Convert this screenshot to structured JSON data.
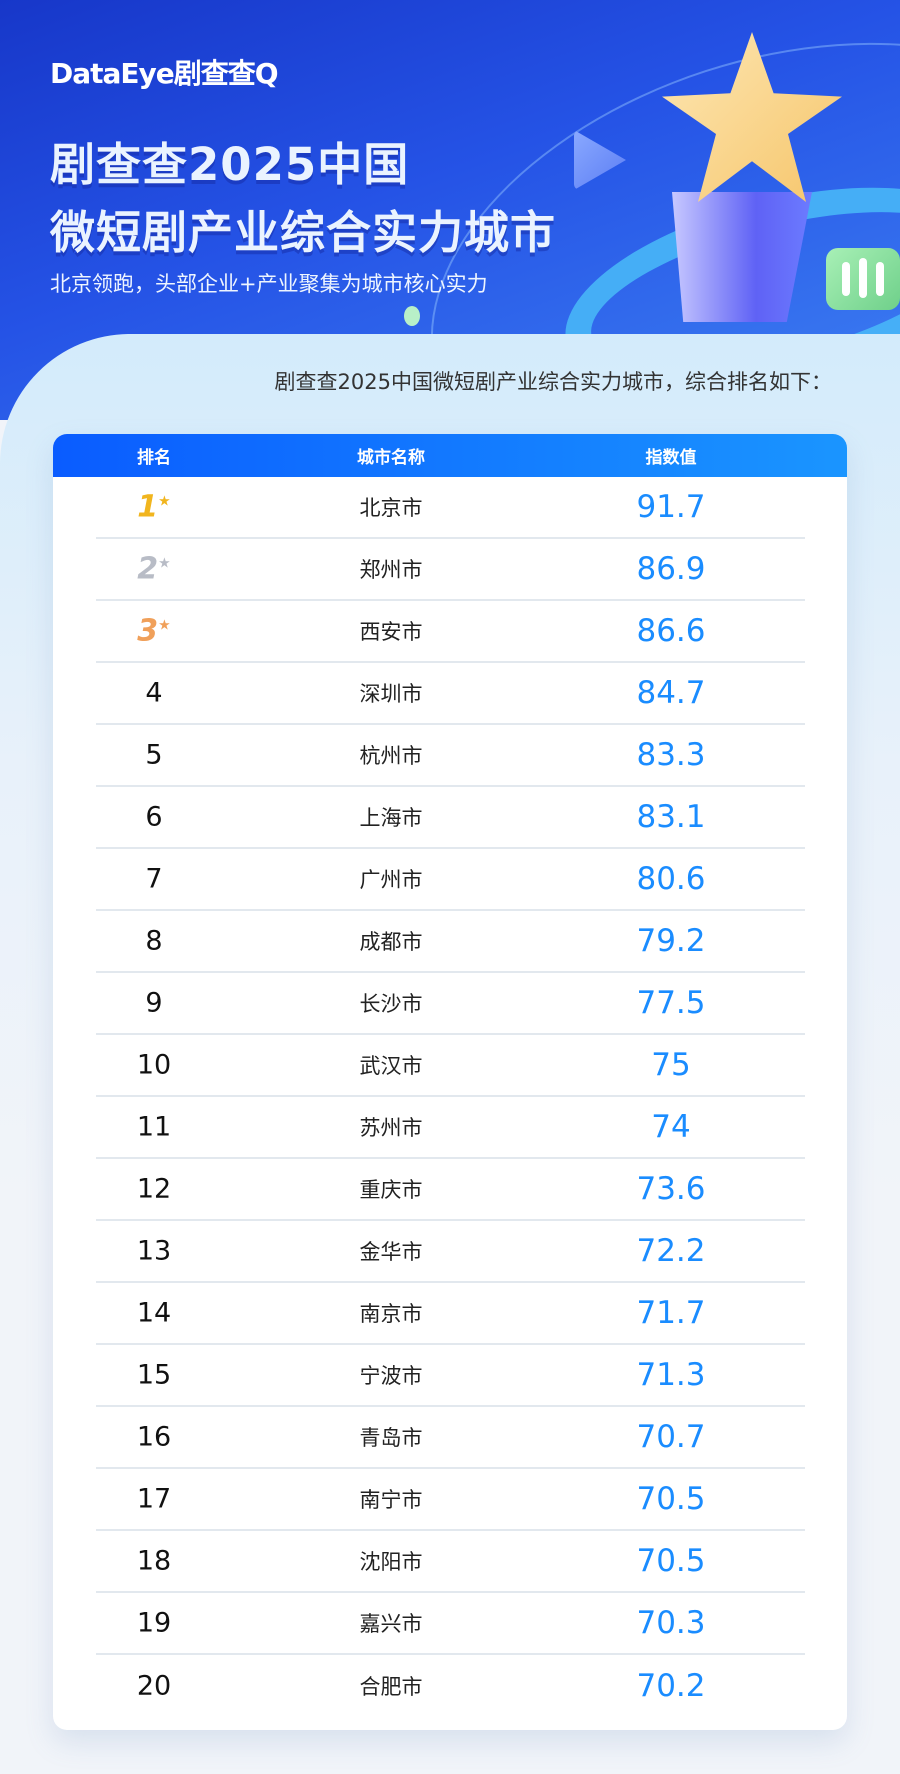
{
  "header": {
    "logo": "DataEye剧查查Q",
    "title_line1": "剧查查2025中国",
    "title_line2": "微短剧产业综合实力城市",
    "subtitle": "北京领跑，头部企业+产业聚集为城市核心实力"
  },
  "intro": "剧查查2025中国微短剧产业综合实力城市，综合排名如下：",
  "table": {
    "columns": [
      "排名",
      "城市名称",
      "指数值"
    ],
    "rows": [
      {
        "rank": "1",
        "city": "北京市",
        "value": "91.7"
      },
      {
        "rank": "2",
        "city": "郑州市",
        "value": "86.9"
      },
      {
        "rank": "3",
        "city": "西安市",
        "value": "86.6"
      },
      {
        "rank": "4",
        "city": "深圳市",
        "value": "84.7"
      },
      {
        "rank": "5",
        "city": "杭州市",
        "value": "83.3"
      },
      {
        "rank": "6",
        "city": "上海市",
        "value": "83.1"
      },
      {
        "rank": "7",
        "city": "广州市",
        "value": "80.6"
      },
      {
        "rank": "8",
        "city": "成都市",
        "value": "79.2"
      },
      {
        "rank": "9",
        "city": "长沙市",
        "value": "77.5"
      },
      {
        "rank": "10",
        "city": "武汉市",
        "value": "75"
      },
      {
        "rank": "11",
        "city": "苏州市",
        "value": "74"
      },
      {
        "rank": "12",
        "city": "重庆市",
        "value": "73.6"
      },
      {
        "rank": "13",
        "city": "金华市",
        "value": "72.2"
      },
      {
        "rank": "14",
        "city": "南京市",
        "value": "71.7"
      },
      {
        "rank": "15",
        "city": "宁波市",
        "value": "71.3"
      },
      {
        "rank": "16",
        "city": "青岛市",
        "value": "70.7"
      },
      {
        "rank": "17",
        "city": "南宁市",
        "value": "70.5"
      },
      {
        "rank": "18",
        "city": "沈阳市",
        "value": "70.5"
      },
      {
        "rank": "19",
        "city": "嘉兴市",
        "value": "70.3"
      },
      {
        "rank": "20",
        "city": "合肥市",
        "value": "70.2"
      }
    ]
  },
  "colors": {
    "header_start": "#0a5cff",
    "header_end": "#1a95ff",
    "value": "#1a8cff",
    "gold": "#f1b51e",
    "silver": "#b8bcc6",
    "bronze": "#f0a05a"
  },
  "icons": {
    "top3": "medal-star-icon",
    "decor": [
      "trophy-star-icon",
      "play-icon",
      "bar-chart-icon"
    ]
  }
}
